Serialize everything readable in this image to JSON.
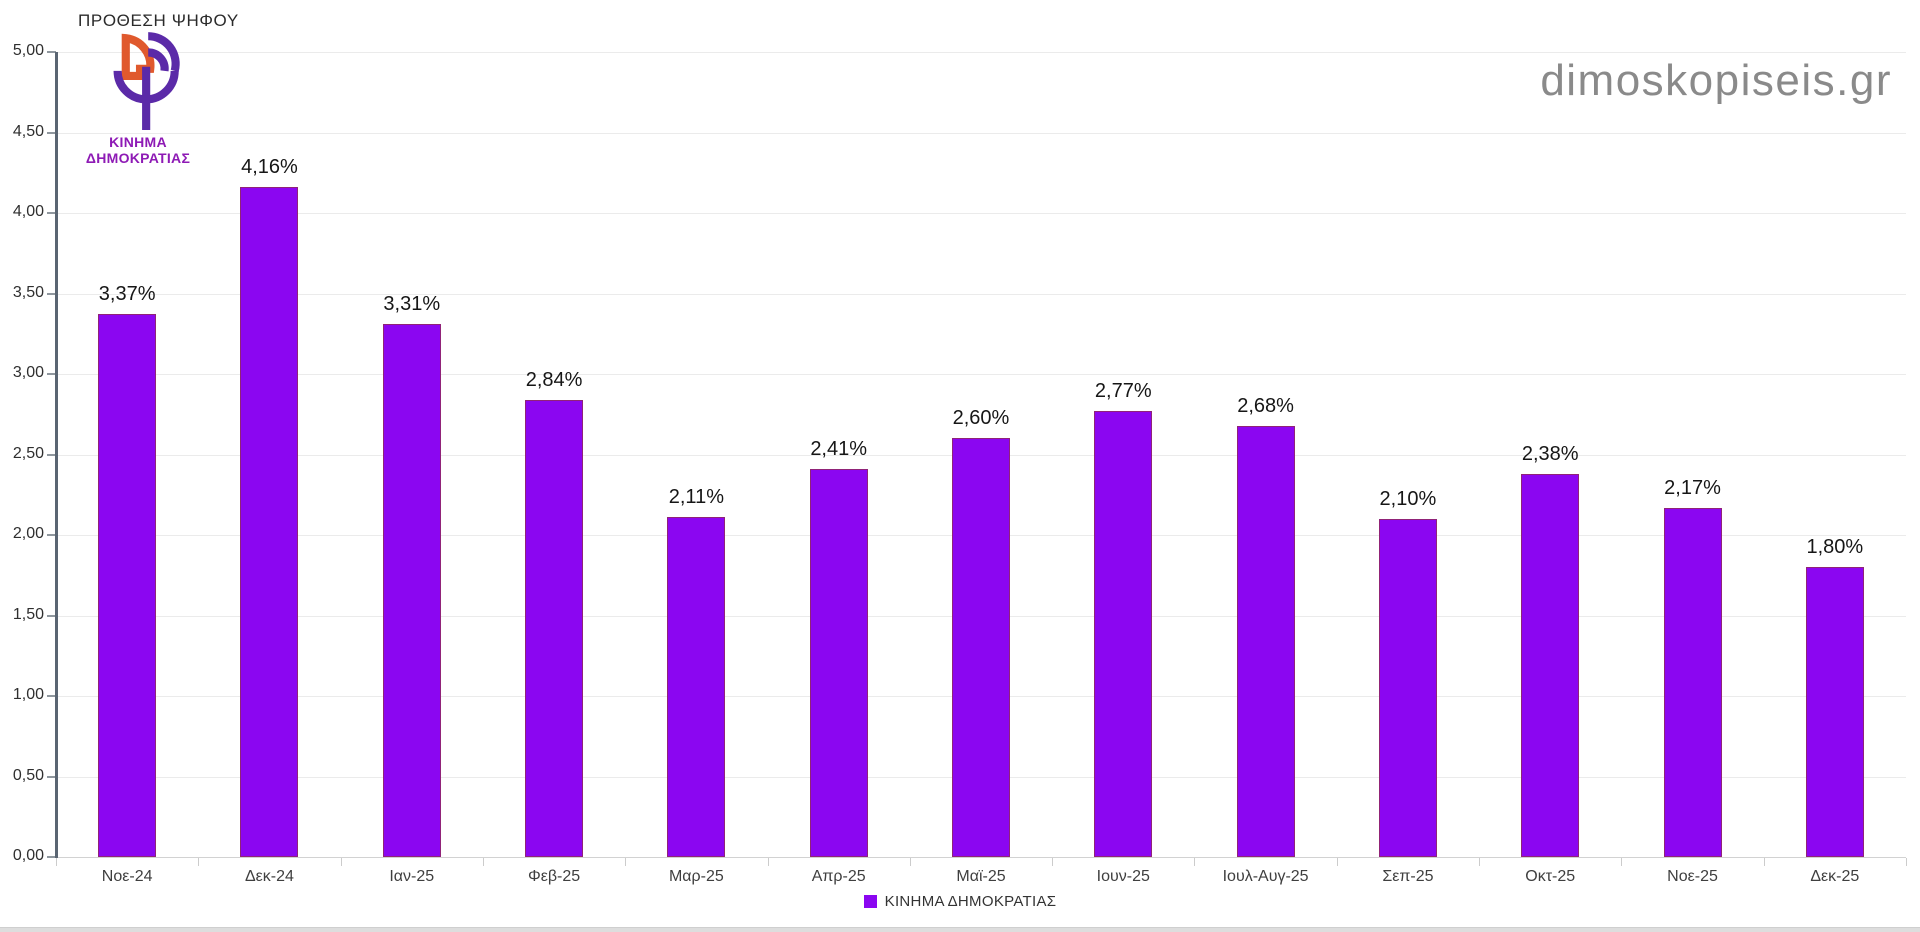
{
  "brand": {
    "watermark": "dimoskopiseis.gr",
    "logo_line1": "ΚΙΝΗΜΑ",
    "logo_line2": "ΔΗΜΟΚΡΑΤΙΑΣ"
  },
  "colors": {
    "bar": "#8B06F1",
    "bar_border": "#96441E",
    "logo_orange": "#E0592D",
    "logo_purple": "#5B2AA8",
    "logo_text": "#8E1AB5",
    "axis": "#5A6572",
    "gridline": "#EBEBEB",
    "watermark_text": "#8A8A8A"
  },
  "chart_data": {
    "type": "bar",
    "title": "ΠΡΟΘΕΣΗ ΨΗΦΟΥ",
    "categories": [
      "Νοε-24",
      "Δεκ-24",
      "Ιαν-25",
      "Φεβ-25",
      "Μαρ-25",
      "Απρ-25",
      "Μαϊ-25",
      "Ιουν-25",
      "Ιουλ-Αυγ-25",
      "Σεπ-25",
      "Οκτ-25",
      "Νοε-25",
      "Δεκ-25"
    ],
    "series": [
      {
        "name": "ΚΙΝΗΜΑ ΔΗΜΟΚΡΑΤΙΑΣ",
        "values": [
          3.37,
          4.16,
          3.31,
          2.84,
          2.11,
          2.41,
          2.6,
          2.77,
          2.68,
          2.1,
          2.38,
          2.17,
          1.8
        ],
        "data_labels": [
          "3,37%",
          "4,16%",
          "3,31%",
          "2,84%",
          "2,11%",
          "2,41%",
          "2,60%",
          "2,77%",
          "2,68%",
          "2,10%",
          "2,38%",
          "2,17%",
          "1,80%"
        ],
        "color": "#8B06F1"
      }
    ],
    "xlabel": "",
    "ylabel": "",
    "ylim": [
      0,
      5
    ],
    "ytick_labels": [
      "0,00",
      "0,50",
      "1,00",
      "1,50",
      "2,00",
      "2,50",
      "3,00",
      "3,50",
      "4,00",
      "4,50",
      "5,00"
    ],
    "grid": true,
    "legend_position": "bottom",
    "legend": {
      "items": [
        {
          "label": "ΚΙΝΗΜΑ ΔΗΜΟΚΡΑΤΙΑΣ",
          "color": "#8B06F1"
        }
      ]
    }
  }
}
